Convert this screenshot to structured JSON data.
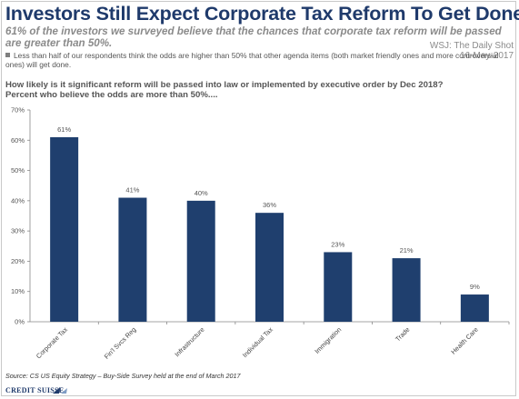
{
  "header": {
    "title": "Investors Still Expect Corporate Tax Reform To Get Done",
    "subtitle": "61% of the investors we surveyed believe that the chances that corporate tax reform will be passed are greater than 50%.",
    "watermark_line1": "WSJ: The Daily Shot",
    "watermark_line2": "16-May-2017",
    "bullet": "Less than half of our respondents think the odds are higher than 50% that other agenda items (both market friendly ones and more controversial ones) will get done."
  },
  "chart_data": {
    "type": "bar",
    "title": "How likely is it significant reform will be passed into law or implemented by executive order by Dec 2018? Percent who believe the odds are more than 50%....",
    "title_line1": "How likely is it significant reform will be passed into law or implemented by executive order by Dec 2018?",
    "title_line2": "Percent who believe the odds are more than 50%....",
    "categories": [
      "Corporate Tax",
      "Fin'l Svcs Reg",
      "Infrastructure",
      "Individual Tax",
      "Immigration",
      "Trade",
      "Health Care"
    ],
    "values": [
      61,
      41,
      40,
      36,
      23,
      21,
      9
    ],
    "data_labels": [
      "61%",
      "41%",
      "40%",
      "36%",
      "23%",
      "21%",
      "9%"
    ],
    "ylim": [
      0,
      70
    ],
    "yticks": [
      0,
      10,
      20,
      30,
      40,
      50,
      60,
      70
    ],
    "ytick_labels": [
      "0%",
      "10%",
      "20%",
      "30%",
      "40%",
      "50%",
      "60%",
      "70%"
    ],
    "xlabel": "",
    "ylabel": "",
    "grid": false,
    "bar_color": "#1f3f6e"
  },
  "footer": {
    "source": "Source: CS US Equity Strategy – Buy-Side Survey held at the end of March 2017",
    "logo_text": "CREDIT SUISSE"
  },
  "colors": {
    "title": "#1f3a6b",
    "text_gray": "#8a8a8a",
    "axis": "#888888"
  }
}
